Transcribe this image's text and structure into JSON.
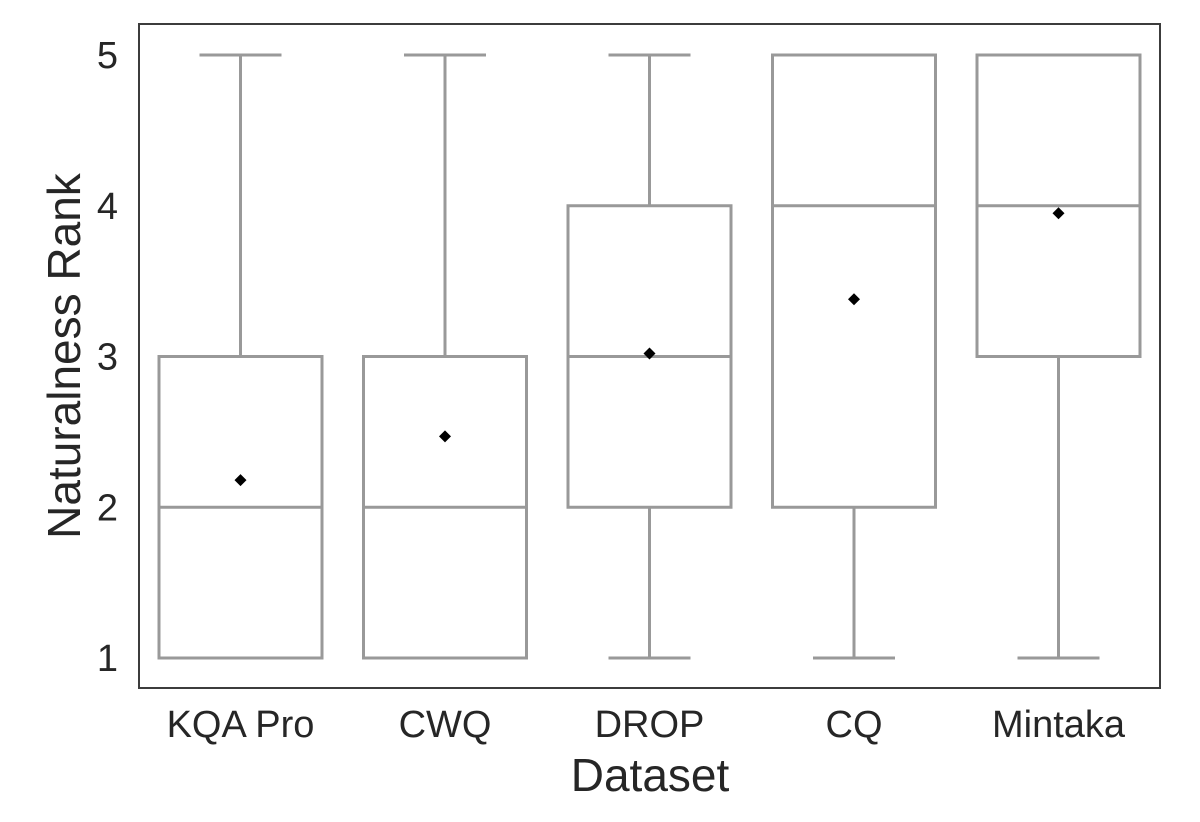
{
  "chart_data": {
    "type": "box",
    "xlabel": "Dataset",
    "ylabel": "Naturalness Rank",
    "ylim": [
      0.8,
      5.2
    ],
    "yticks": [
      1,
      2,
      3,
      4,
      5
    ],
    "grid": false,
    "colors": {
      "box": "#999999",
      "mean": "#000000",
      "frame": "#3c3c3c",
      "text": "#262626"
    },
    "categories": [
      "KQA Pro",
      "CWQ",
      "DROP",
      "CQ",
      "Mintaka"
    ],
    "boxes": [
      {
        "category": "KQA Pro",
        "whisker_low": 1,
        "q1": 1,
        "median": 2,
        "q3": 3,
        "whisker_high": 5,
        "mean": 2.18
      },
      {
        "category": "CWQ",
        "whisker_low": 1,
        "q1": 1,
        "median": 2,
        "q3": 3,
        "whisker_high": 5,
        "mean": 2.47
      },
      {
        "category": "DROP",
        "whisker_low": 1,
        "q1": 2,
        "median": 3,
        "q3": 4,
        "whisker_high": 5,
        "mean": 3.02
      },
      {
        "category": "CQ",
        "whisker_low": 1,
        "q1": 2,
        "median": 4,
        "q3": 5,
        "whisker_high": 5,
        "mean": 3.38
      },
      {
        "category": "Mintaka",
        "whisker_low": 1,
        "q1": 3,
        "median": 4,
        "q3": 5,
        "whisker_high": 5,
        "mean": 3.95
      }
    ]
  }
}
